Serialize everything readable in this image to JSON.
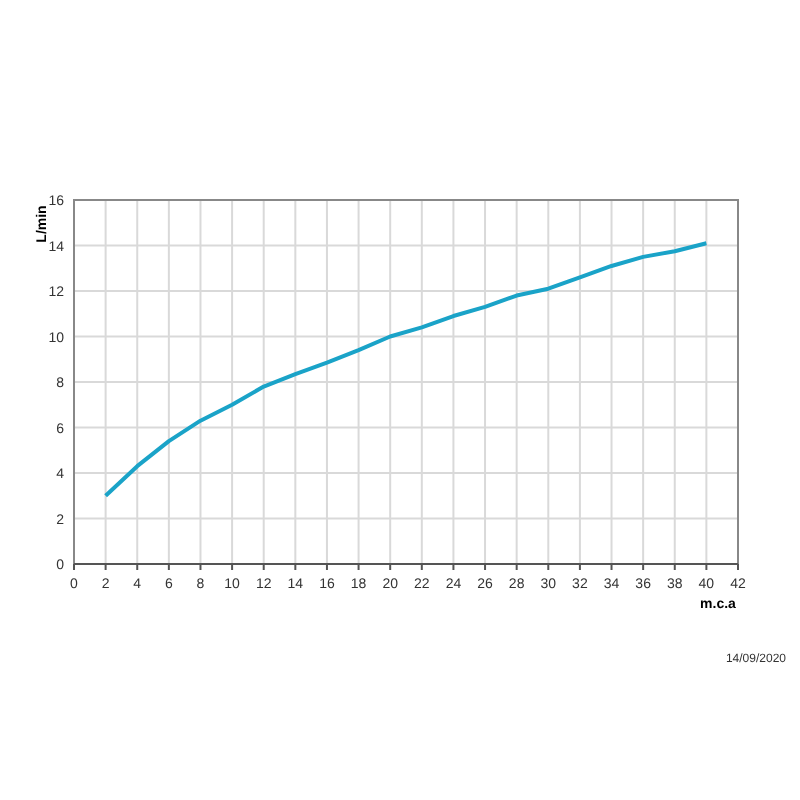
{
  "chart_data": {
    "type": "line",
    "xlabel": "m.c.a",
    "ylabel": "L/min",
    "annotations": [
      "14/09/2020"
    ],
    "x": [
      2,
      4,
      6,
      8,
      10,
      12,
      14,
      16,
      18,
      20,
      22,
      24,
      26,
      28,
      30,
      32,
      34,
      36,
      38,
      40
    ],
    "series": [
      {
        "color": "#1aa3c8",
        "values": [
          3.0,
          4.3,
          5.4,
          6.3,
          7.0,
          7.8,
          8.35,
          8.85,
          9.4,
          10.0,
          10.4,
          10.9,
          11.3,
          11.8,
          12.1,
          12.6,
          13.1,
          13.5,
          13.75,
          14.1
        ]
      }
    ],
    "xlim": [
      0,
      42
    ],
    "xticks": [
      0,
      2,
      4,
      6,
      8,
      10,
      12,
      14,
      16,
      18,
      20,
      22,
      24,
      26,
      28,
      30,
      32,
      34,
      36,
      38,
      40,
      42
    ],
    "ylim": [
      0,
      16
    ],
    "yticks": [
      0,
      2,
      4,
      6,
      8,
      10,
      12,
      14,
      16
    ],
    "grid": true,
    "marker": "none",
    "line_style": "solid"
  }
}
